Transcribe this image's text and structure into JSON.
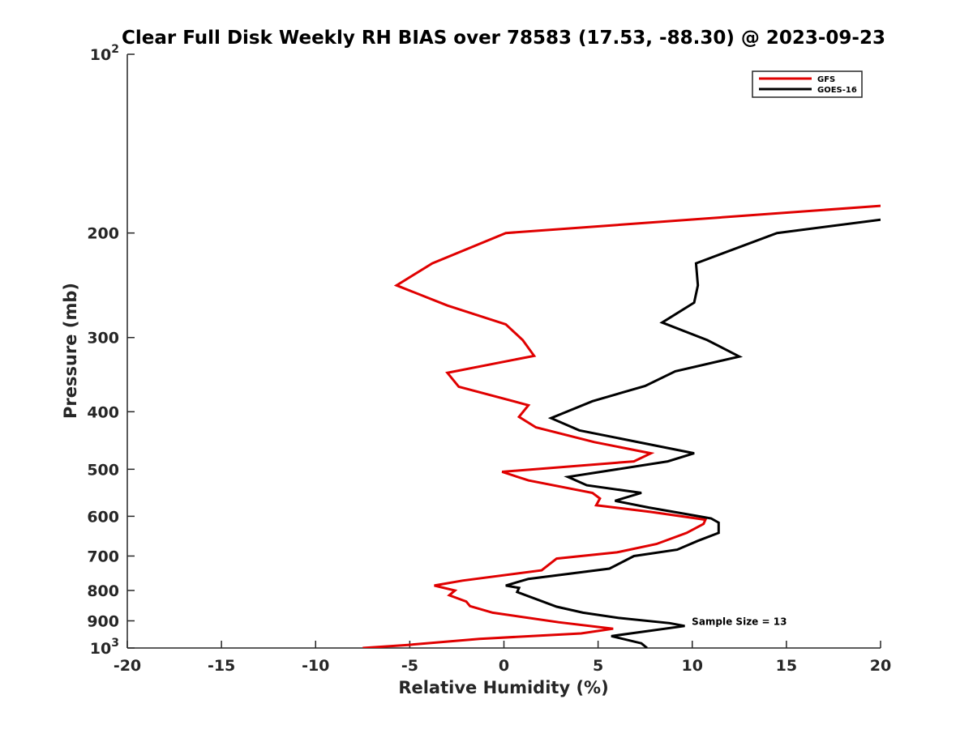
{
  "chart_data": {
    "type": "line",
    "title": "Clear Full Disk Weekly RH BIAS over 78583 (17.53, -88.30) @ 2023-09-23",
    "xlabel": "Relative Humidity (%)",
    "ylabel": "Pressure (mb)",
    "xlim": [
      -20,
      20
    ],
    "ylim": [
      100,
      1000
    ],
    "yscale": "log",
    "y_reversed": false,
    "grid": false,
    "legend_placement": "top-right",
    "x_ticks": [
      "-20",
      "-15",
      "-10",
      "-5",
      "0",
      "5",
      "10",
      "15",
      "20"
    ],
    "y_ticks": [
      {
        "value": 100,
        "base": "10",
        "exp": "2"
      },
      {
        "value": 200,
        "label": "200"
      },
      {
        "value": 300,
        "label": "300"
      },
      {
        "value": 400,
        "label": "400"
      },
      {
        "value": 500,
        "label": "500"
      },
      {
        "value": 600,
        "label": "600"
      },
      {
        "value": 700,
        "label": "700"
      },
      {
        "value": 800,
        "label": "800"
      },
      {
        "value": 900,
        "label": "900"
      },
      {
        "value": 1000,
        "base": "10",
        "exp": "3"
      }
    ],
    "series": [
      {
        "name": "GFS",
        "color": "#e00000",
        "points": [
          [
            20,
            180
          ],
          [
            0.1,
            200
          ],
          [
            -3.8,
            225
          ],
          [
            -5.7,
            245
          ],
          [
            -3.0,
            265
          ],
          [
            0.1,
            285
          ],
          [
            1.0,
            303
          ],
          [
            1.6,
            322
          ],
          [
            -3.0,
            344
          ],
          [
            -2.4,
            363
          ],
          [
            1.3,
            390
          ],
          [
            0.8,
            408
          ],
          [
            1.7,
            425
          ],
          [
            4.8,
            450
          ],
          [
            7.8,
            470
          ],
          [
            6.9,
            485
          ],
          [
            -0.1,
            505
          ],
          [
            1.3,
            522
          ],
          [
            4.7,
            548
          ],
          [
            5.1,
            560
          ],
          [
            4.9,
            575
          ],
          [
            7.8,
            590
          ],
          [
            10.7,
            608
          ],
          [
            10.6,
            618
          ],
          [
            9.7,
            640
          ],
          [
            8.1,
            668
          ],
          [
            6.0,
            690
          ],
          [
            2.8,
            707
          ],
          [
            2.0,
            740
          ],
          [
            -2.2,
            770
          ],
          [
            -3.7,
            785
          ],
          [
            -2.6,
            800
          ],
          [
            -2.9,
            815
          ],
          [
            -2.0,
            835
          ],
          [
            -1.8,
            850
          ],
          [
            -0.6,
            872
          ],
          [
            2.9,
            905
          ],
          [
            5.8,
            928
          ],
          [
            4.1,
            945
          ],
          [
            -1.3,
            965
          ],
          [
            -5.1,
            988
          ],
          [
            -7.5,
            1000
          ]
        ]
      },
      {
        "name": "GOES-16",
        "color": "#000000",
        "points": [
          [
            20,
            190
          ],
          [
            14.5,
            200
          ],
          [
            10.2,
            225
          ],
          [
            10.3,
            245
          ],
          [
            10.1,
            262
          ],
          [
            8.4,
            283
          ],
          [
            10.8,
            303
          ],
          [
            12.5,
            323
          ],
          [
            9.1,
            342
          ],
          [
            7.5,
            362
          ],
          [
            4.7,
            384
          ],
          [
            2.5,
            410
          ],
          [
            4.0,
            430
          ],
          [
            10.1,
            470
          ],
          [
            8.7,
            485
          ],
          [
            3.4,
            515
          ],
          [
            4.4,
            532
          ],
          [
            7.3,
            548
          ],
          [
            5.9,
            565
          ],
          [
            7.7,
            580
          ],
          [
            11.0,
            605
          ],
          [
            11.4,
            615
          ],
          [
            11.4,
            640
          ],
          [
            10.3,
            660
          ],
          [
            9.2,
            683
          ],
          [
            6.9,
            700
          ],
          [
            5.6,
            735
          ],
          [
            1.3,
            765
          ],
          [
            0.1,
            785
          ],
          [
            0.8,
            792
          ],
          [
            0.7,
            805
          ],
          [
            2.8,
            852
          ],
          [
            4.2,
            872
          ],
          [
            6.1,
            890
          ],
          [
            8.8,
            908
          ],
          [
            9.6,
            918
          ],
          [
            5.7,
            955
          ],
          [
            7.3,
            982
          ],
          [
            7.6,
            1000
          ]
        ]
      }
    ],
    "annotations": [
      {
        "text": "Sample Size = 13",
        "x": 12.5,
        "y": 900
      }
    ]
  }
}
